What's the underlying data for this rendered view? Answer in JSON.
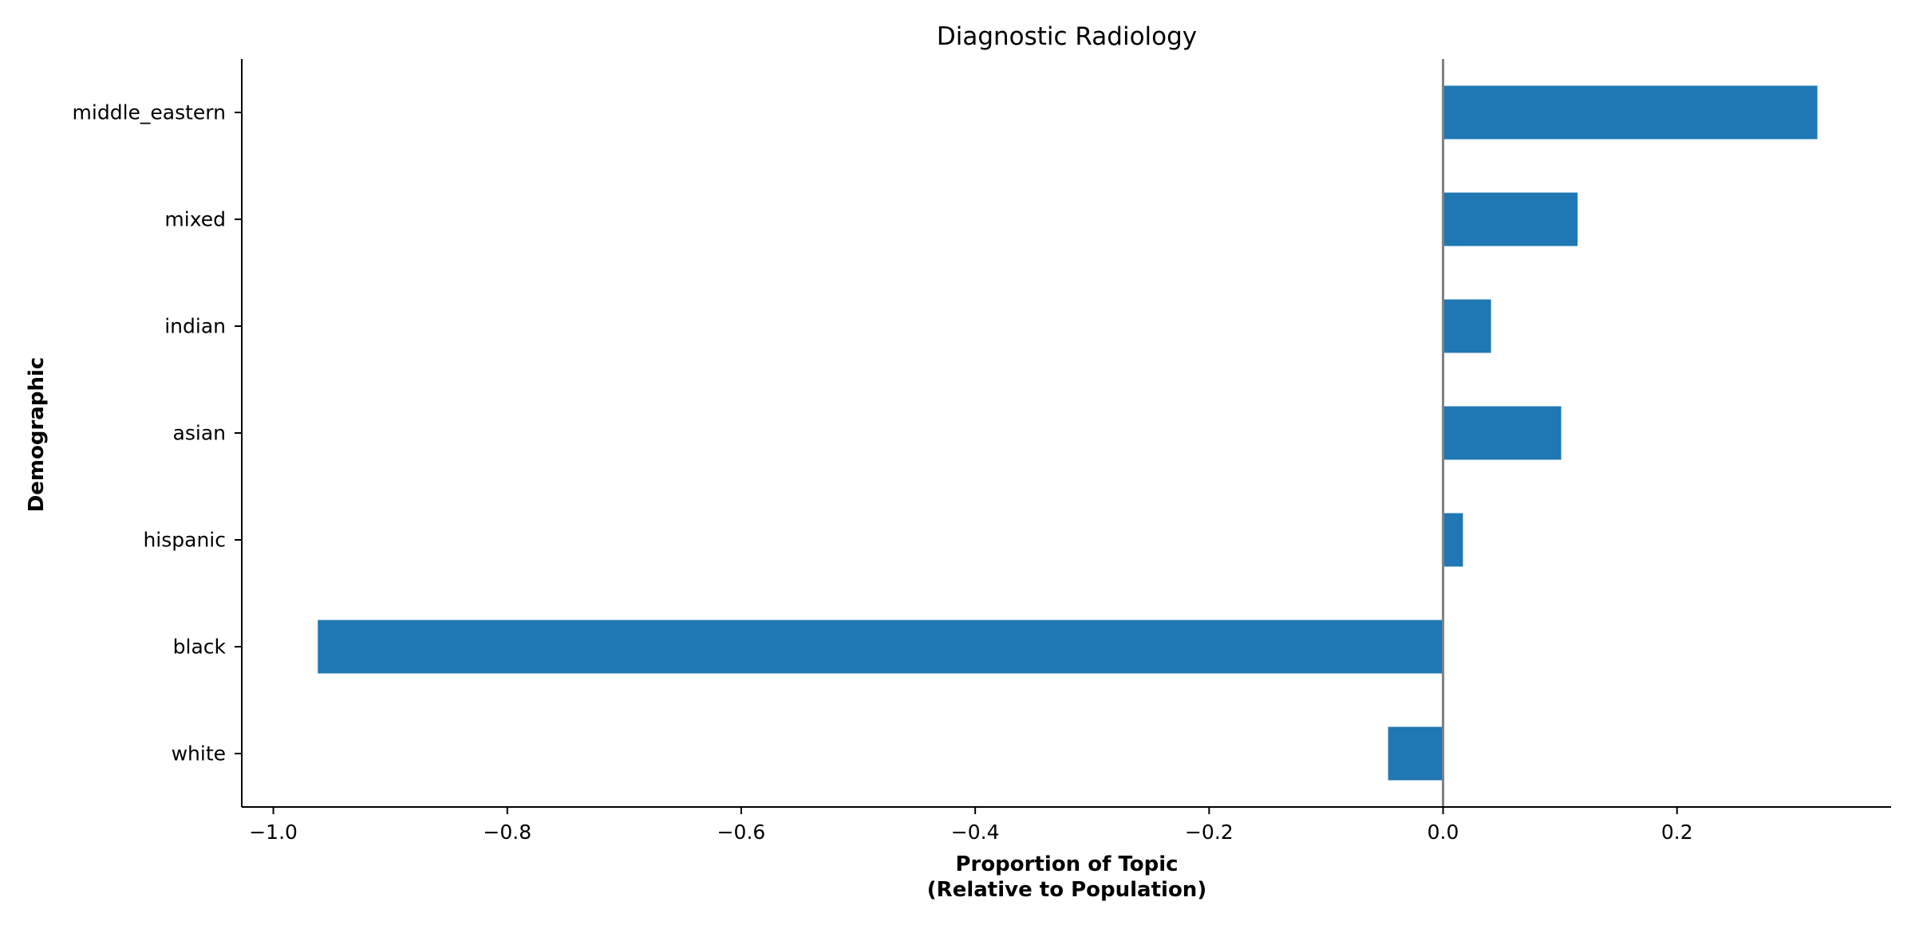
{
  "chart_data": {
    "type": "bar",
    "orientation": "horizontal",
    "title": "Diagnostic Radiology",
    "xlabel": [
      "Proportion of Topic",
      "(Relative to Population)"
    ],
    "ylabel": "Demographic",
    "categories": [
      "middle_eastern",
      "mixed",
      "indian",
      "asian",
      "hispanic",
      "black",
      "white"
    ],
    "values": [
      0.32,
      0.115,
      0.041,
      0.101,
      0.017,
      -0.962,
      -0.047
    ],
    "xlim": [
      -1.027,
      0.383
    ],
    "xticks": [
      -1.0,
      -0.8,
      -0.6,
      -0.4,
      -0.2,
      0.0,
      0.2
    ],
    "xtick_labels": [
      "−1.0",
      "−0.8",
      "−0.6",
      "−0.4",
      "−0.2",
      "0.0",
      "0.2"
    ],
    "zero_line": true,
    "grid": false,
    "legend": "none",
    "colors": {
      "bar": "#1f77b4",
      "zero_line": "#808080",
      "axis": "#000000"
    }
  }
}
